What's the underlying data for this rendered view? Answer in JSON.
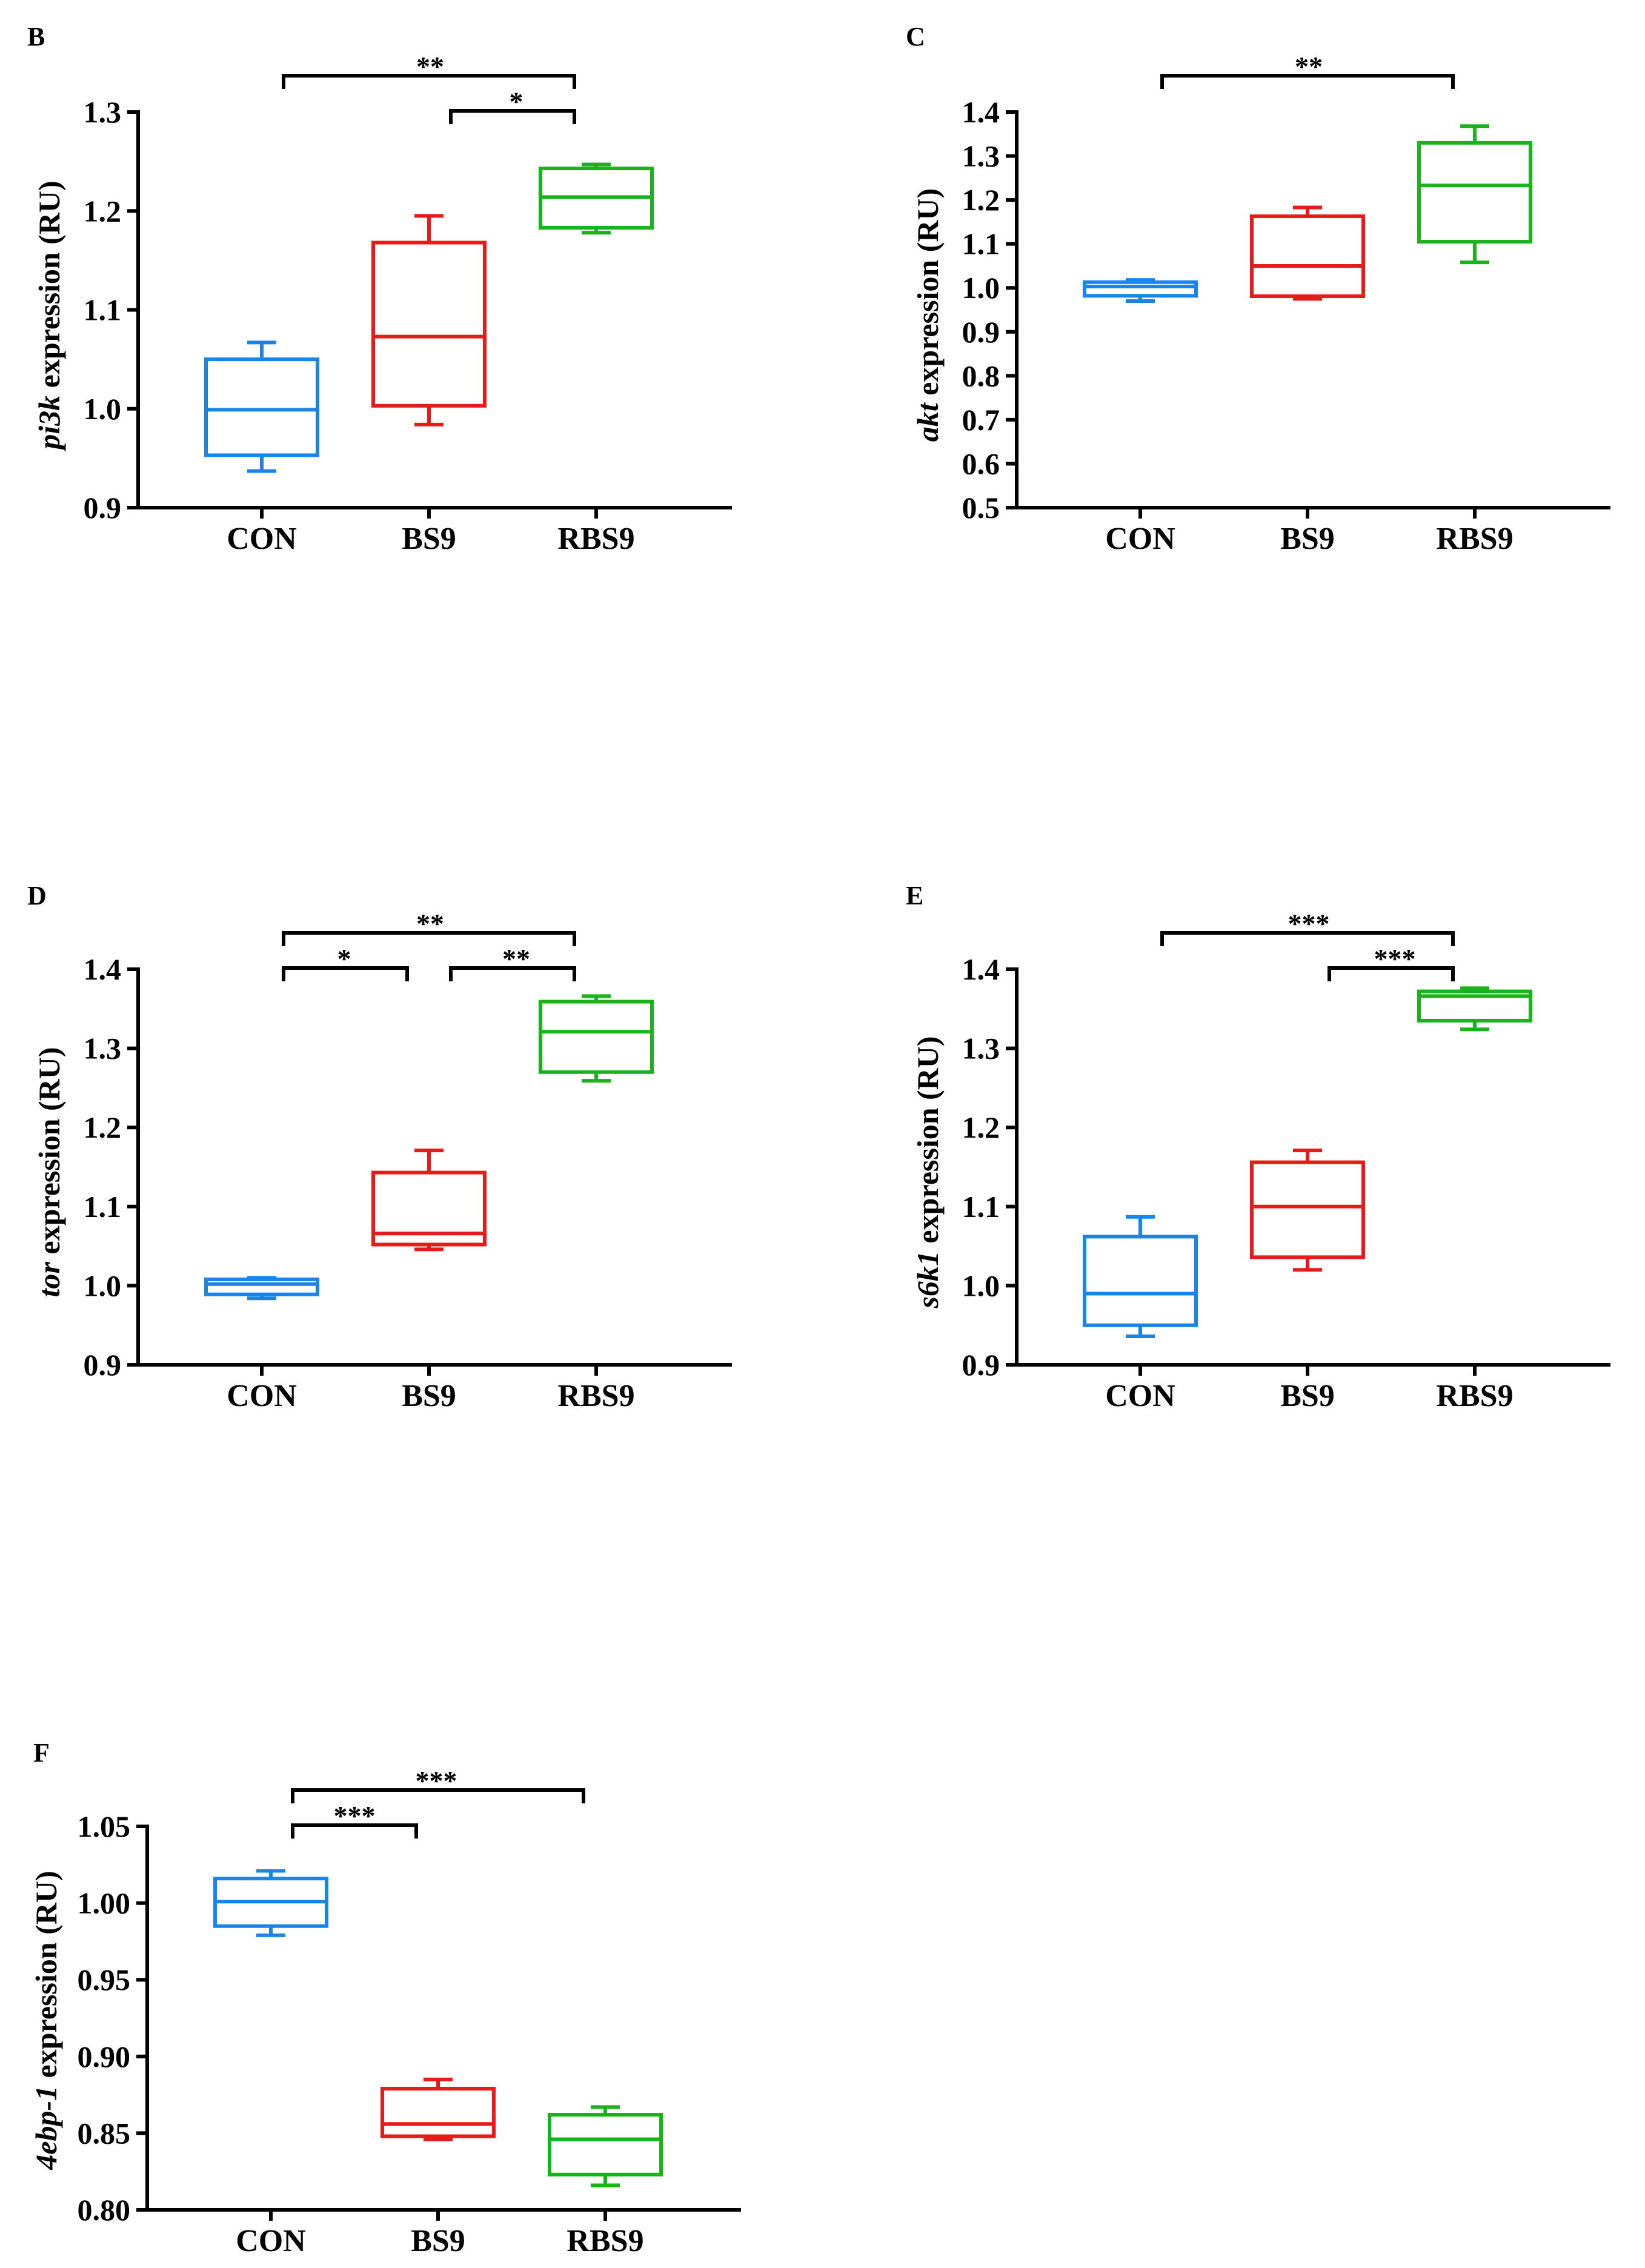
{
  "chart_data": [
    {
      "type": "box",
      "panel": "B",
      "gene": "pi3k",
      "ylabel_suffix": " expression (RU)",
      "ylim": [
        0.9,
        1.3
      ],
      "yticks": [
        "0.9",
        "1.0",
        "1.1",
        "1.2",
        "1.3"
      ],
      "yticks_values": [
        0.9,
        1.0,
        1.1,
        1.2,
        1.3
      ],
      "categories": [
        "CON",
        "BS9",
        "RBS9"
      ],
      "colors": [
        "#1a85e8",
        "#e81b1b",
        "#1ab31a"
      ],
      "boxes": [
        {
          "min": 0.937,
          "q1": 0.953,
          "median": 0.999,
          "q3": 1.05,
          "max": 1.067
        },
        {
          "min": 0.984,
          "q1": 1.003,
          "median": 1.073,
          "q3": 1.168,
          "max": 1.195
        },
        {
          "min": 1.178,
          "q1": 1.183,
          "median": 1.214,
          "q3": 1.243,
          "max": 1.247
        }
      ],
      "significance": [
        {
          "from": 0,
          "to": 2,
          "level": 2,
          "label": "**"
        },
        {
          "from": 1,
          "to": 2,
          "level": 1,
          "label": "*"
        }
      ]
    },
    {
      "type": "box",
      "panel": "C",
      "gene": "akt",
      "ylabel_suffix": " expression (RU)",
      "ylim": [
        0.5,
        1.4
      ],
      "yticks": [
        "0.5",
        "0.6",
        "0.7",
        "0.8",
        "0.9",
        "1.0",
        "1.1",
        "1.2",
        "1.3",
        "1.4"
      ],
      "yticks_values": [
        0.5,
        0.6,
        0.7,
        0.8,
        0.9,
        1.0,
        1.1,
        1.2,
        1.3,
        1.4
      ],
      "categories": [
        "CON",
        "BS9",
        "RBS9"
      ],
      "colors": [
        "#1a85e8",
        "#e81b1b",
        "#1ab31a"
      ],
      "boxes": [
        {
          "min": 0.97,
          "q1": 0.982,
          "median": 1.003,
          "q3": 1.013,
          "max": 1.018
        },
        {
          "min": 0.975,
          "q1": 0.981,
          "median": 1.05,
          "q3": 1.163,
          "max": 1.183
        },
        {
          "min": 1.058,
          "q1": 1.105,
          "median": 1.233,
          "q3": 1.33,
          "max": 1.368
        }
      ],
      "significance": [
        {
          "from": 0,
          "to": 2,
          "level": 1,
          "label": "**"
        }
      ]
    },
    {
      "type": "box",
      "panel": "D",
      "gene": "tor",
      "ylabel_suffix": " expression (RU)",
      "ylim": [
        0.9,
        1.4
      ],
      "yticks": [
        "0.9",
        "1.0",
        "1.1",
        "1.2",
        "1.3",
        "1.4"
      ],
      "yticks_values": [
        0.9,
        1.0,
        1.1,
        1.2,
        1.3,
        1.4
      ],
      "categories": [
        "CON",
        "BS9",
        "RBS9"
      ],
      "colors": [
        "#1a85e8",
        "#e81b1b",
        "#1ab31a"
      ],
      "boxes": [
        {
          "min": 0.984,
          "q1": 0.989,
          "median": 1.002,
          "q3": 1.008,
          "max": 1.01
        },
        {
          "min": 1.046,
          "q1": 1.052,
          "median": 1.066,
          "q3": 1.143,
          "max": 1.171
        },
        {
          "min": 1.259,
          "q1": 1.27,
          "median": 1.321,
          "q3": 1.359,
          "max": 1.366
        }
      ],
      "significance": [
        {
          "from": 0,
          "to": 2,
          "level": 2,
          "label": "**"
        },
        {
          "from": 0,
          "to": 1,
          "level": 1,
          "label": "*"
        },
        {
          "from": 1,
          "to": 2,
          "level": 1,
          "label": "**"
        }
      ]
    },
    {
      "type": "box",
      "panel": "E",
      "gene": "s6k1",
      "ylabel_suffix": " expression (RU)",
      "ylim": [
        0.9,
        1.4
      ],
      "yticks": [
        "0.9",
        "1.0",
        "1.1",
        "1.2",
        "1.3",
        "1.4"
      ],
      "yticks_values": [
        0.9,
        1.0,
        1.1,
        1.2,
        1.3,
        1.4
      ],
      "categories": [
        "CON",
        "BS9",
        "RBS9"
      ],
      "colors": [
        "#1a85e8",
        "#e81b1b",
        "#1ab31a"
      ],
      "boxes": [
        {
          "min": 0.936,
          "q1": 0.95,
          "median": 0.99,
          "q3": 1.062,
          "max": 1.087
        },
        {
          "min": 1.02,
          "q1": 1.036,
          "median": 1.1,
          "q3": 1.156,
          "max": 1.171
        },
        {
          "min": 1.324,
          "q1": 1.335,
          "median": 1.366,
          "q3": 1.372,
          "max": 1.376
        }
      ],
      "significance": [
        {
          "from": 0,
          "to": 2,
          "level": 2,
          "label": "***"
        },
        {
          "from": 1,
          "to": 2,
          "level": 1,
          "label": "***"
        }
      ]
    },
    {
      "type": "box",
      "panel": "F",
      "gene": "4ebp-1",
      "ylabel_suffix": " expression (RU)",
      "ylim": [
        0.8,
        1.05
      ],
      "yticks": [
        "0.80",
        "0.85",
        "0.90",
        "0.95",
        "1.00",
        "1.05"
      ],
      "yticks_values": [
        0.8,
        0.85,
        0.9,
        0.95,
        1.0,
        1.05
      ],
      "categories": [
        "CON",
        "BS9",
        "RBS9"
      ],
      "colors": [
        "#1a85e8",
        "#e81b1b",
        "#1ab31a"
      ],
      "boxes": [
        {
          "min": 0.979,
          "q1": 0.985,
          "median": 1.001,
          "q3": 1.016,
          "max": 1.021
        },
        {
          "min": 0.846,
          "q1": 0.848,
          "median": 0.856,
          "q3": 0.879,
          "max": 0.885
        },
        {
          "min": 0.816,
          "q1": 0.823,
          "median": 0.846,
          "q3": 0.862,
          "max": 0.867
        }
      ],
      "significance": [
        {
          "from": 0,
          "to": 2,
          "level": 2,
          "label": "***"
        },
        {
          "from": 0,
          "to": 1,
          "level": 1,
          "label": "***"
        }
      ]
    }
  ]
}
